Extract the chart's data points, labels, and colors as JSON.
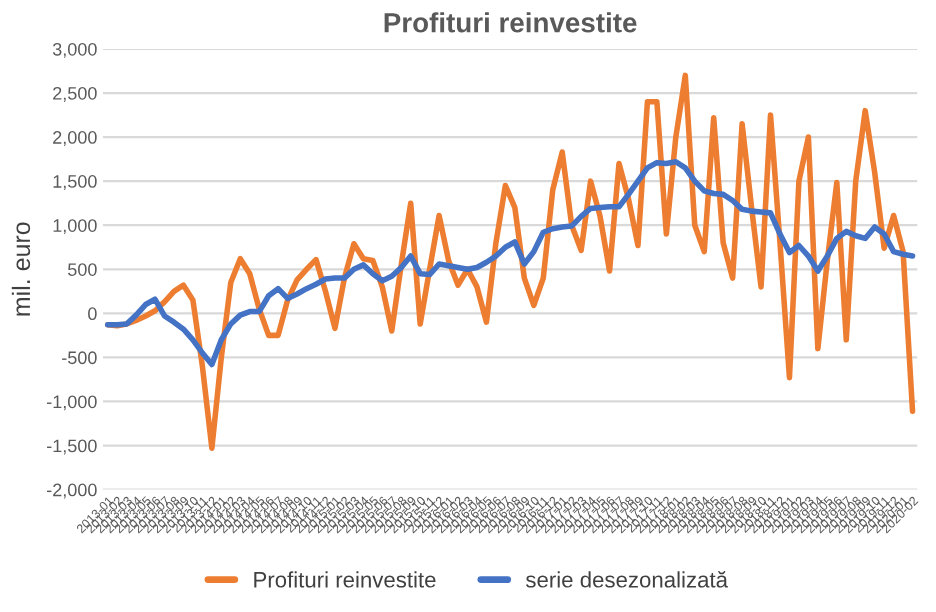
{
  "chart_data": {
    "type": "line",
    "title": "Profituri reinvestite",
    "ylabel": "mil. euro",
    "categories": [
      "2013-01",
      "2013-02",
      "2013-03",
      "2013-04",
      "2013-05",
      "2013-06",
      "2013-07",
      "2013-08",
      "2013-09",
      "2013-10",
      "2013-11",
      "2013-12",
      "2014-01",
      "2014-02",
      "2014-03",
      "2014-04",
      "2014-05",
      "2014-06",
      "2014-07",
      "2014-08",
      "2014-09",
      "2014-10",
      "2014-11",
      "2014-12",
      "2015-01",
      "2015-02",
      "2015-03",
      "2015-04",
      "2015-05",
      "2015-06",
      "2015-07",
      "2015-08",
      "2015-09",
      "2015-10",
      "2015-11",
      "2015-12",
      "2016-01",
      "2016-02",
      "2016-03",
      "2016-04",
      "2016-05",
      "2016-06",
      "2016-07",
      "2016-08",
      "2016-09",
      "2016-10",
      "2016-11",
      "2016-12",
      "2017-01",
      "2017-02",
      "2017-03",
      "2017-04",
      "2017-05",
      "2017-06",
      "2017-07",
      "2017-08",
      "2017-09",
      "2017-10",
      "2017-11",
      "2017-12",
      "2018-01",
      "2018-02",
      "2018-03",
      "2018-04",
      "2018-05",
      "2018-06",
      "2018-07",
      "2018-08",
      "2018-09",
      "2018-10",
      "2018-11",
      "2018-12",
      "2019-01",
      "2019-02",
      "2019-03",
      "2019-04",
      "2019-05",
      "2019-06",
      "2019-07",
      "2019-08",
      "2019-09",
      "2019-10",
      "2019-11",
      "2019-12",
      "2020-01",
      "2020-02"
    ],
    "series": [
      {
        "name": "Profituri reinvestite",
        "color": "#ed7d31",
        "values": [
          -130,
          -140,
          -120,
          -80,
          -30,
          30,
          130,
          250,
          320,
          150,
          -600,
          -1530,
          -500,
          350,
          620,
          450,
          50,
          -250,
          -250,
          150,
          380,
          500,
          610,
          250,
          -170,
          400,
          790,
          620,
          600,
          300,
          -200,
          550,
          1250,
          -120,
          500,
          1110,
          600,
          320,
          500,
          300,
          -100,
          800,
          1450,
          1200,
          400,
          90,
          400,
          1400,
          1830,
          1000,
          715,
          1500,
          1100,
          480,
          1700,
          1300,
          770,
          2400,
          2400,
          900,
          2000,
          2700,
          1000,
          700,
          2220,
          800,
          400,
          2150,
          1200,
          300,
          2250,
          800,
          -730,
          1500,
          2000,
          -400,
          600,
          1485,
          -300,
          1500,
          2300,
          1600,
          740,
          1110,
          700,
          -1110
        ]
      },
      {
        "name": "serie desezonalizată",
        "color": "#4472c4",
        "values": [
          -130,
          -130,
          -120,
          -20,
          100,
          160,
          -30,
          -100,
          -180,
          -300,
          -450,
          -580,
          -300,
          -120,
          -20,
          20,
          20,
          200,
          280,
          170,
          220,
          280,
          330,
          390,
          400,
          400,
          500,
          550,
          450,
          370,
          420,
          520,
          650,
          450,
          440,
          560,
          540,
          520,
          500,
          520,
          580,
          650,
          750,
          810,
          560,
          700,
          920,
          960,
          980,
          990,
          1100,
          1190,
          1200,
          1210,
          1210,
          1350,
          1500,
          1650,
          1710,
          1700,
          1720,
          1650,
          1500,
          1390,
          1360,
          1350,
          1280,
          1180,
          1160,
          1150,
          1140,
          900,
          690,
          770,
          650,
          480,
          650,
          850,
          930,
          880,
          850,
          980,
          900,
          700,
          670,
          650
        ]
      }
    ],
    "ylim": [
      -2000,
      3000
    ],
    "yticks": [
      {
        "value": -2000,
        "label": "-2,000"
      },
      {
        "value": -1500,
        "label": "-1,500"
      },
      {
        "value": -1000,
        "label": "-1,000"
      },
      {
        "value": -500,
        "label": "-500"
      },
      0,
      {
        "value": 500,
        "label": "500"
      },
      {
        "value": 1000,
        "label": "1,000"
      },
      {
        "value": 1500,
        "label": "1,500"
      },
      {
        "value": 2000,
        "label": "2,000"
      },
      {
        "value": 2500,
        "label": "2,500"
      },
      {
        "value": 3000,
        "label": "3,000"
      }
    ],
    "grid": "y",
    "legend": "bottom",
    "marker": "none",
    "line_style": "solid"
  }
}
